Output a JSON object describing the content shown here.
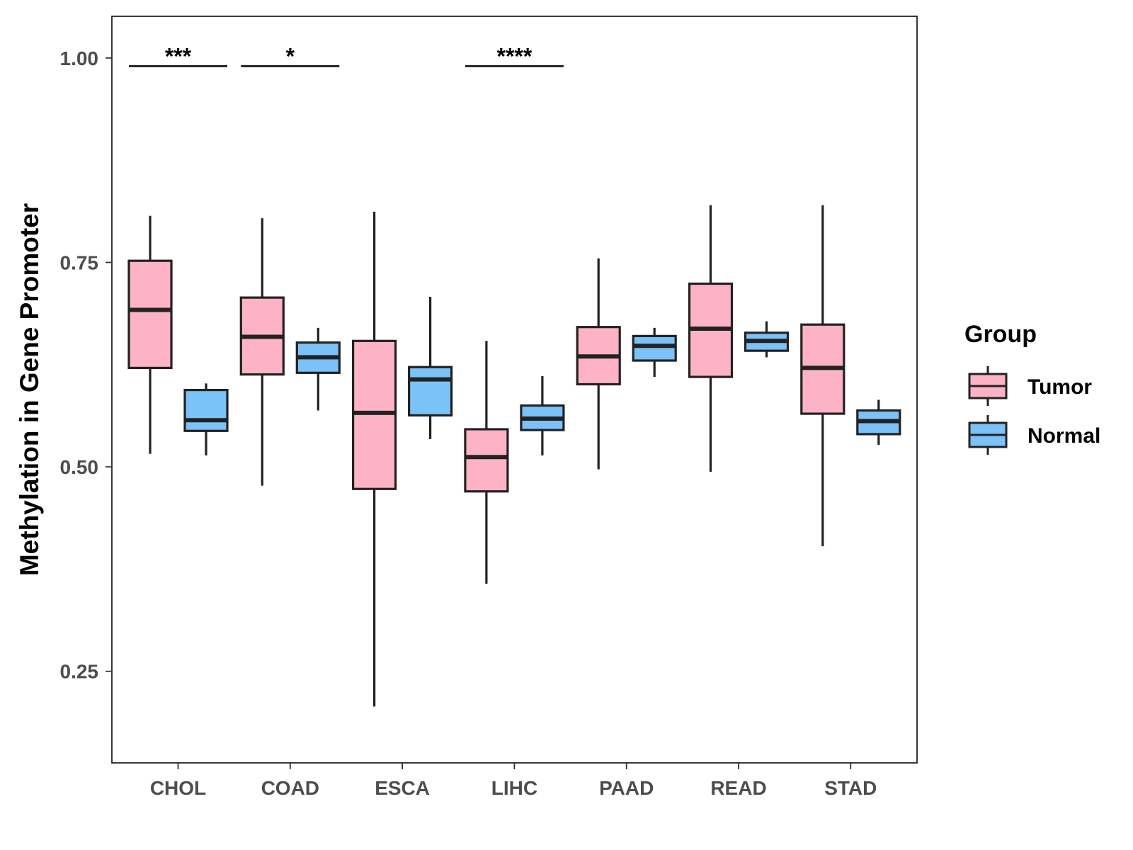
{
  "chart_data": {
    "type": "boxplot",
    "title": "",
    "xlabel": "",
    "ylabel": "Methylation in Gene Promoter",
    "ylim": [
      0.138,
      1.051
    ],
    "y_ticks": [
      0.25,
      0.5,
      0.75,
      1.0
    ],
    "y_tick_labels": [
      "0.25",
      "0.50",
      "0.75",
      "1.00"
    ],
    "categories": [
      "CHOL",
      "COAD",
      "ESCA",
      "LIHC",
      "PAAD",
      "READ",
      "STAD"
    ],
    "legend": {
      "title": "Group",
      "position": "right",
      "items": [
        {
          "label": "Tumor",
          "color": "#FDB2C5"
        },
        {
          "label": "Normal",
          "color": "#7AC2F8"
        }
      ]
    },
    "series": [
      {
        "name": "Tumor",
        "color": "#FDB2C5",
        "boxes": [
          {
            "category": "CHOL",
            "min": 0.516,
            "q1": 0.621,
            "median": 0.692,
            "q3": 0.752,
            "max": 0.807
          },
          {
            "category": "COAD",
            "min": 0.477,
            "q1": 0.613,
            "median": 0.659,
            "q3": 0.707,
            "max": 0.804
          },
          {
            "category": "ESCA",
            "min": 0.207,
            "q1": 0.473,
            "median": 0.566,
            "q3": 0.654,
            "max": 0.812
          },
          {
            "category": "LIHC",
            "min": 0.357,
            "q1": 0.47,
            "median": 0.512,
            "q3": 0.546,
            "max": 0.654
          },
          {
            "category": "PAAD",
            "min": 0.497,
            "q1": 0.601,
            "median": 0.635,
            "q3": 0.671,
            "max": 0.755
          },
          {
            "category": "READ",
            "min": 0.494,
            "q1": 0.61,
            "median": 0.669,
            "q3": 0.724,
            "max": 0.82
          },
          {
            "category": "STAD",
            "min": 0.403,
            "q1": 0.565,
            "median": 0.621,
            "q3": 0.674,
            "max": 0.82
          }
        ]
      },
      {
        "name": "Normal",
        "color": "#7AC2F8",
        "boxes": [
          {
            "category": "CHOL",
            "min": 0.514,
            "q1": 0.544,
            "median": 0.557,
            "q3": 0.594,
            "max": 0.602
          },
          {
            "category": "COAD",
            "min": 0.569,
            "q1": 0.615,
            "median": 0.634,
            "q3": 0.652,
            "max": 0.67
          },
          {
            "category": "ESCA",
            "min": 0.534,
            "q1": 0.563,
            "median": 0.607,
            "q3": 0.622,
            "max": 0.708
          },
          {
            "category": "LIHC",
            "min": 0.514,
            "q1": 0.545,
            "median": 0.559,
            "q3": 0.575,
            "max": 0.611
          },
          {
            "category": "PAAD",
            "min": 0.61,
            "q1": 0.63,
            "median": 0.648,
            "q3": 0.66,
            "max": 0.67
          },
          {
            "category": "READ",
            "min": 0.634,
            "q1": 0.642,
            "median": 0.654,
            "q3": 0.664,
            "max": 0.678
          },
          {
            "category": "STAD",
            "min": 0.527,
            "q1": 0.54,
            "median": 0.556,
            "q3": 0.569,
            "max": 0.582
          }
        ]
      }
    ],
    "significance": [
      {
        "category": "CHOL",
        "label": "***",
        "y": 0.99
      },
      {
        "category": "COAD",
        "label": "*",
        "y": 0.99
      },
      {
        "category": "LIHC",
        "label": "****",
        "y": 0.99
      }
    ]
  }
}
